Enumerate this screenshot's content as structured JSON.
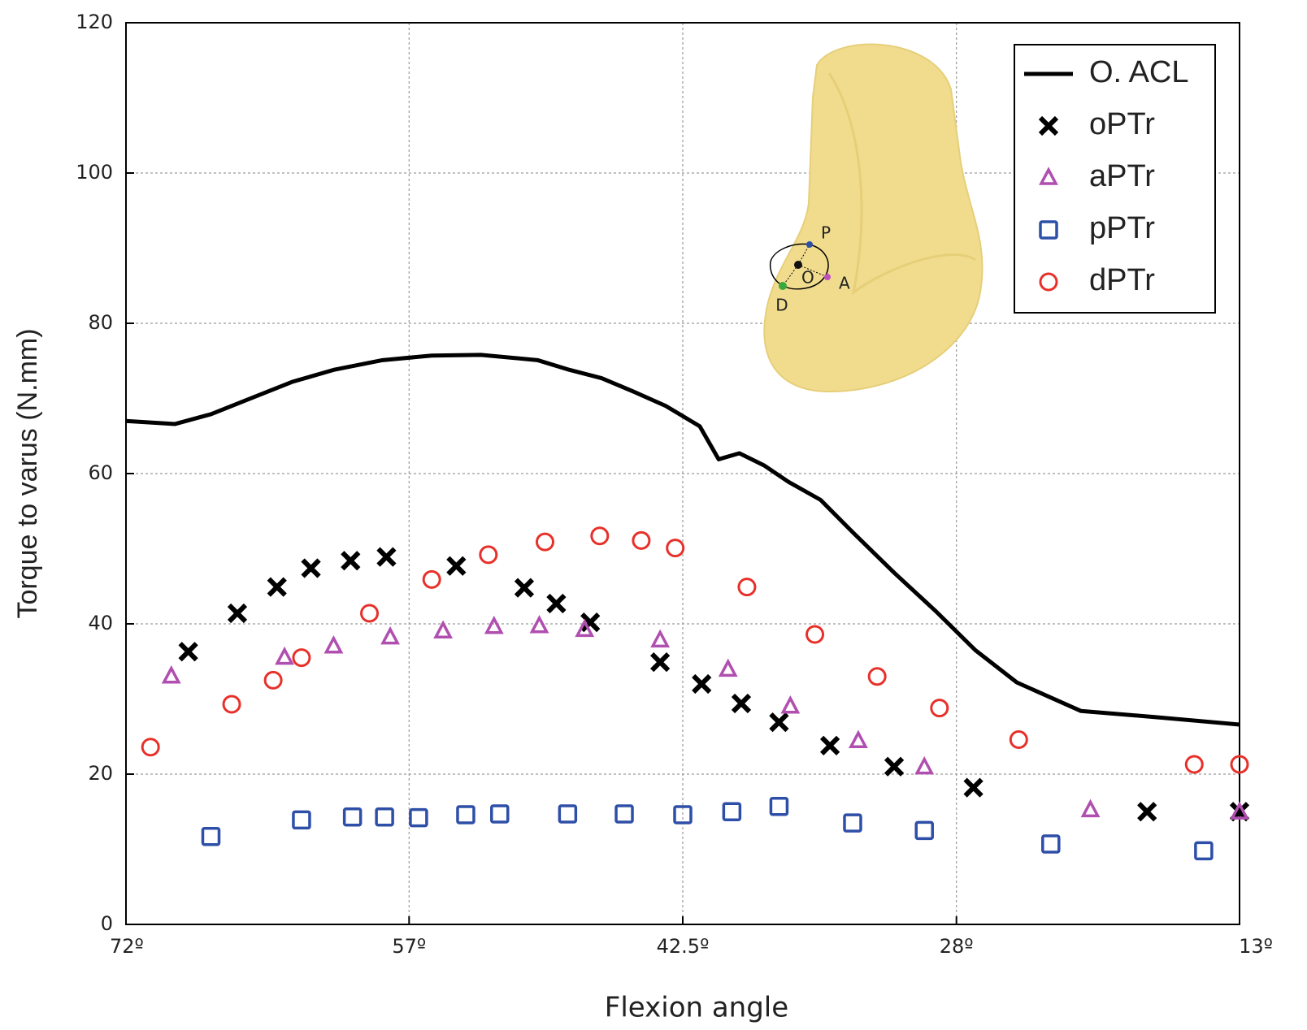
{
  "chart_data": {
    "type": "scatter",
    "xlabel": "Flexion angle",
    "ylabel": "Torque to varus (N.mm)",
    "xlim": [
      72,
      13
    ],
    "ylim": [
      0,
      120
    ],
    "xticks": [
      {
        "value": 72,
        "label": "72º"
      },
      {
        "value": 57,
        "label": "57º"
      },
      {
        "value": 42.5,
        "label": "42.5º"
      },
      {
        "value": 28,
        "label": "28º"
      },
      {
        "value": 13,
        "label": "13º"
      }
    ],
    "yticks": [
      0,
      20,
      40,
      60,
      80,
      100,
      120
    ],
    "grid": true,
    "legend": "upper right",
    "annotations": [
      "P",
      "O",
      "A",
      "D"
    ],
    "series": [
      {
        "name": "O. ACL",
        "color": "#000000",
        "marker": "line",
        "x": [
          72,
          69.4,
          67.5,
          65.3,
          63.2,
          61.0,
          58.4,
          55.8,
          53.2,
          50.2,
          48.5,
          46.8,
          45.1,
          43.4,
          41.6,
          40.6,
          39.5,
          38.2,
          36.9,
          35.2,
          33.5,
          31.3,
          29.1,
          27.0,
          24.8,
          21.4,
          17.5,
          13.0
        ],
        "values": [
          67.0,
          66.6,
          67.9,
          70.1,
          72.2,
          73.8,
          75.1,
          75.7,
          75.8,
          75.1,
          73.8,
          72.7,
          70.9,
          69.0,
          66.3,
          61.9,
          62.7,
          61.1,
          58.9,
          56.5,
          52.2,
          46.8,
          41.7,
          36.5,
          32.2,
          28.4,
          27.6,
          26.6
        ]
      },
      {
        "name": "oPTr",
        "color": "#000000",
        "marker": "x",
        "x": [
          68.7,
          66.1,
          64.0,
          62.2,
          60.1,
          58.2,
          54.5,
          50.9,
          49.2,
          47.4,
          43.7,
          41.5,
          39.4,
          37.4,
          34.7,
          31.3,
          27.1,
          17.9,
          13.0
        ],
        "values": [
          36.3,
          41.4,
          44.9,
          47.4,
          48.4,
          48.9,
          47.7,
          44.8,
          42.7,
          40.2,
          34.9,
          32.0,
          29.4,
          26.9,
          23.8,
          21.0,
          18.2,
          15.0,
          15.0
        ]
      },
      {
        "name": "aPTr",
        "color": "#b04fb0",
        "marker": "triangle",
        "x": [
          69.6,
          63.6,
          61.0,
          58.0,
          55.2,
          52.5,
          50.1,
          47.7,
          43.7,
          40.1,
          36.8,
          33.2,
          29.7,
          20.9,
          13.0
        ],
        "values": [
          33.0,
          35.5,
          37.0,
          38.2,
          39.0,
          39.6,
          39.7,
          39.2,
          37.8,
          33.9,
          29.0,
          24.4,
          20.9,
          15.2,
          14.9
        ]
      },
      {
        "name": "pPTr",
        "color": "#2e4fa8",
        "marker": "square",
        "x": [
          67.5,
          62.7,
          60.0,
          58.3,
          56.5,
          54.0,
          52.2,
          48.6,
          45.6,
          42.5,
          39.9,
          37.4,
          33.5,
          29.7,
          23.0,
          14.9
        ],
        "values": [
          11.7,
          13.9,
          14.3,
          14.3,
          14.2,
          14.6,
          14.7,
          14.7,
          14.7,
          14.6,
          15.0,
          15.7,
          13.5,
          12.5,
          10.7,
          9.8
        ]
      },
      {
        "name": "dPTr",
        "color": "#e8302a",
        "marker": "circle",
        "x": [
          70.7,
          66.4,
          64.2,
          62.7,
          59.1,
          55.8,
          52.8,
          49.8,
          46.9,
          44.7,
          42.9,
          39.1,
          35.5,
          32.2,
          28.9,
          24.7,
          15.4,
          13.0
        ],
        "values": [
          23.6,
          29.3,
          32.5,
          35.5,
          41.4,
          45.9,
          49.2,
          50.9,
          51.7,
          51.1,
          50.1,
          44.9,
          38.6,
          33.0,
          28.8,
          24.6,
          21.3,
          21.3
        ]
      }
    ]
  }
}
